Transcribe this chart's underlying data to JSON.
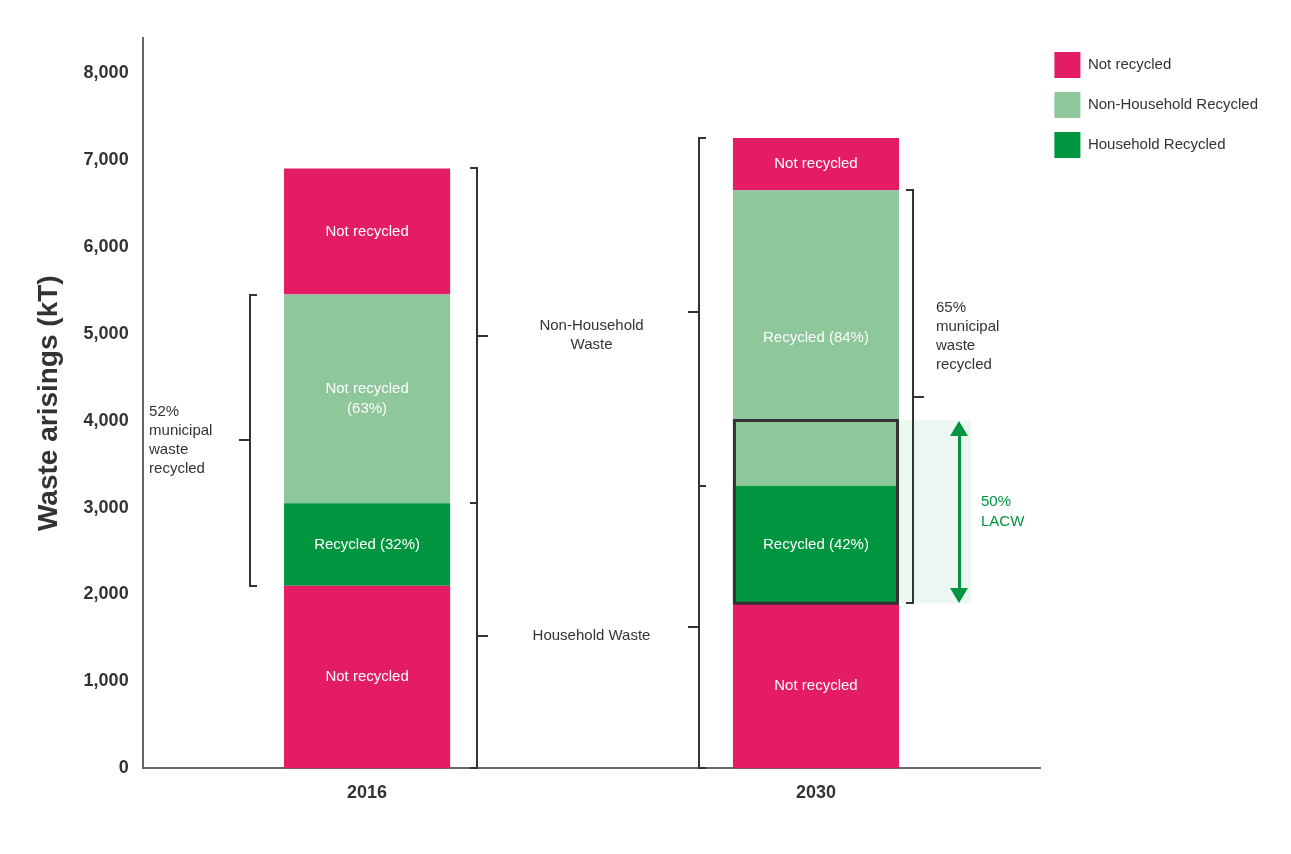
{
  "chart_data": {
    "type": "bar",
    "stacked": true,
    "ylabel": "Waste arisings (kT)",
    "categories": [
      "2016",
      "2030"
    ],
    "series": [
      {
        "color": "#e31c63",
        "values": [
          2100,
          1900
        ]
      },
      {
        "name": "Household Recycled",
        "color": "#009640",
        "values": [
          950,
          1350
        ]
      },
      {
        "name": "Non-Household Recycled",
        "color": "#8dc79a",
        "values": [
          2400,
          3400
        ]
      },
      {
        "name": "Not recycled",
        "color": "#e31c63",
        "values": [
          1450,
          600
        ]
      }
    ],
    "ylim": [
      0,
      8400
    ],
    "yticks": [
      0,
      {
        "value": 1000,
        "label": "1,000"
      },
      {
        "value": 2000,
        "label": "2,000"
      },
      {
        "value": 3000,
        "label": "3,000"
      },
      {
        "value": 4000,
        "label": "4,000"
      },
      {
        "value": 5000,
        "label": "5,000"
      },
      {
        "value": 6000,
        "label": "6,000"
      },
      {
        "value": 7000,
        "label": "7,000"
      },
      {
        "value": 8000,
        "label": "8,000"
      }
    ],
    "grid": false,
    "legend": "top right",
    "bands": [
      {
        "axis": "y",
        "from": 1900,
        "to": 4000,
        "label": "50% LACW",
        "color": "#009640"
      }
    ],
    "annotations": [
      "52% municipal waste recycled",
      "Non-Household Waste",
      "Household Waste",
      "65% municipal waste recycled",
      "Not recycled",
      "Recycled (32%)",
      "Not recycled (63%)",
      "Not recycled",
      "Not recycled",
      "Recycled (42%)",
      "Recycled (84%)",
      "Not recycled"
    ]
  }
}
